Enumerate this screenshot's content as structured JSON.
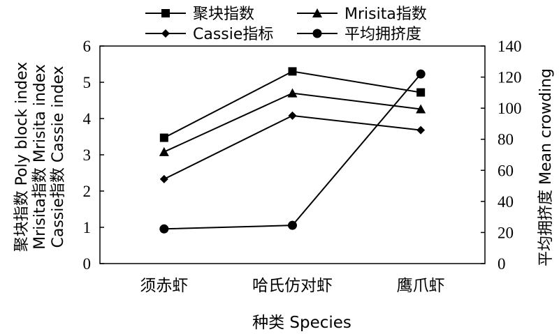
{
  "chart_data": {
    "type": "line",
    "categories": [
      "须赤虾",
      "哈氏仿对虾",
      "鹰爪虾"
    ],
    "xlabel": "种类 Species",
    "ylabel_left_lines": [
      "聚块指数 Poly block index",
      "Mrisita指数 Mrisita index",
      "Cassie指数 Cassie index"
    ],
    "ylabel_right": "平均拥挤度 Mean crowding",
    "ylim_left": [
      0,
      6
    ],
    "ylim_right": [
      0,
      140
    ],
    "yticks_left": [
      "0",
      "1",
      "2",
      "3",
      "4",
      "5",
      "6"
    ],
    "yticks_right": [
      "0",
      "20",
      "40",
      "60",
      "80",
      "100",
      "120",
      "140"
    ],
    "grid": false,
    "legend_position": "top",
    "series": [
      {
        "name": "聚块指数",
        "marker": "square",
        "axis": "left",
        "values": [
          3.47,
          5.3,
          4.72
        ]
      },
      {
        "name": "Mrisita指数",
        "marker": "triangle",
        "axis": "left",
        "values": [
          3.08,
          4.7,
          4.26
        ]
      },
      {
        "name": "Cassie指标",
        "marker": "diamond",
        "axis": "left",
        "values": [
          2.33,
          4.08,
          3.68
        ]
      },
      {
        "name": "平均拥挤度",
        "marker": "circle",
        "axis": "right",
        "values": [
          22.3,
          24.6,
          122
        ]
      }
    ]
  }
}
